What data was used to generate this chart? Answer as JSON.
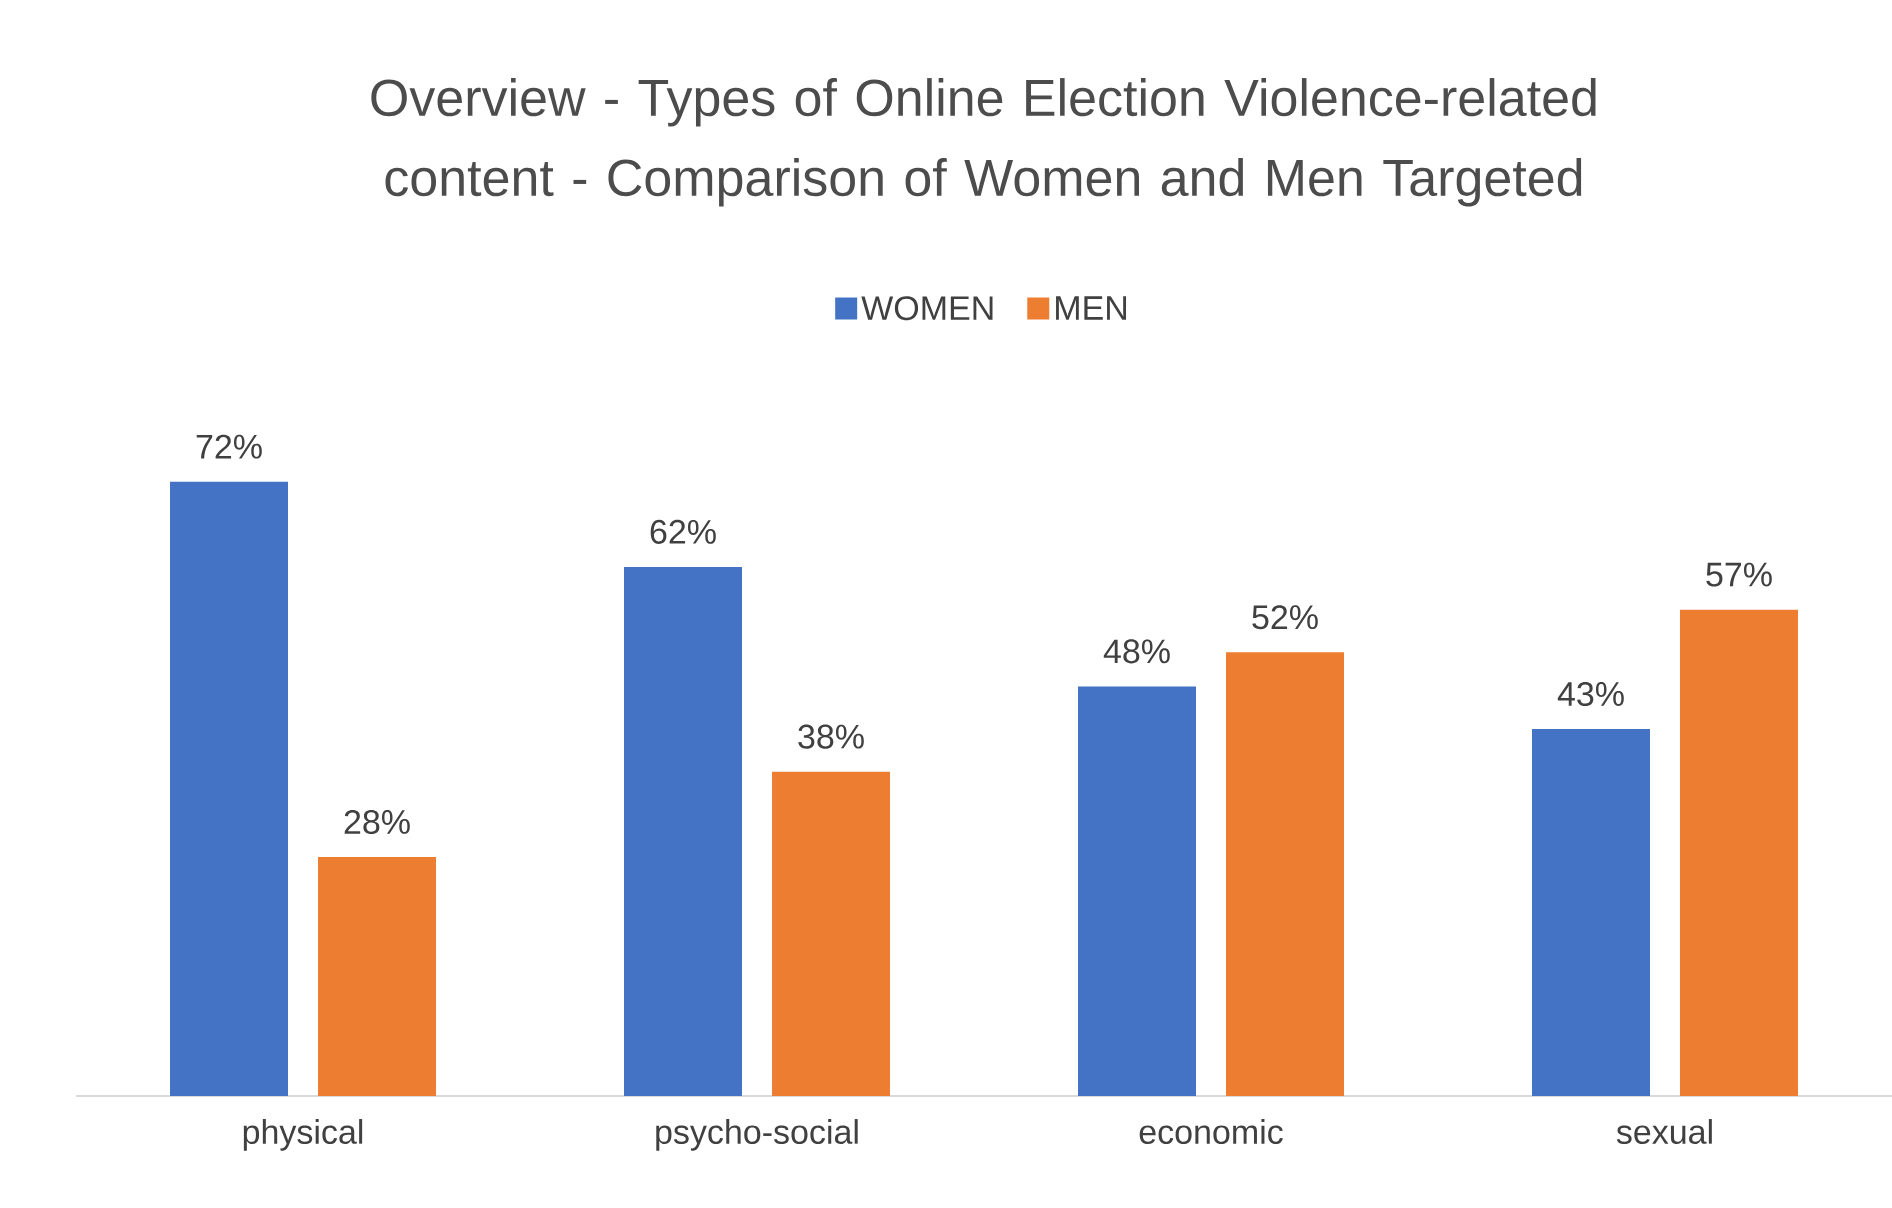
{
  "chart_data": {
    "type": "bar",
    "title": "Overview - Types of Online Election Violence-related content - Comparison of Women and Men Targeted",
    "categories": [
      "physical",
      "psycho-social",
      "economic",
      "sexual"
    ],
    "series": [
      {
        "name": "WOMEN",
        "color": "#4472c4",
        "values": [
          72,
          62,
          48,
          43
        ],
        "value_labels": [
          "72%",
          "62%",
          "48%",
          "43%"
        ]
      },
      {
        "name": "MEN",
        "color": "#ed7d31",
        "values": [
          28,
          38,
          52,
          57
        ],
        "value_labels": [
          "28%",
          "38%",
          "52%",
          "57%"
        ]
      }
    ],
    "legend": "top"
  }
}
